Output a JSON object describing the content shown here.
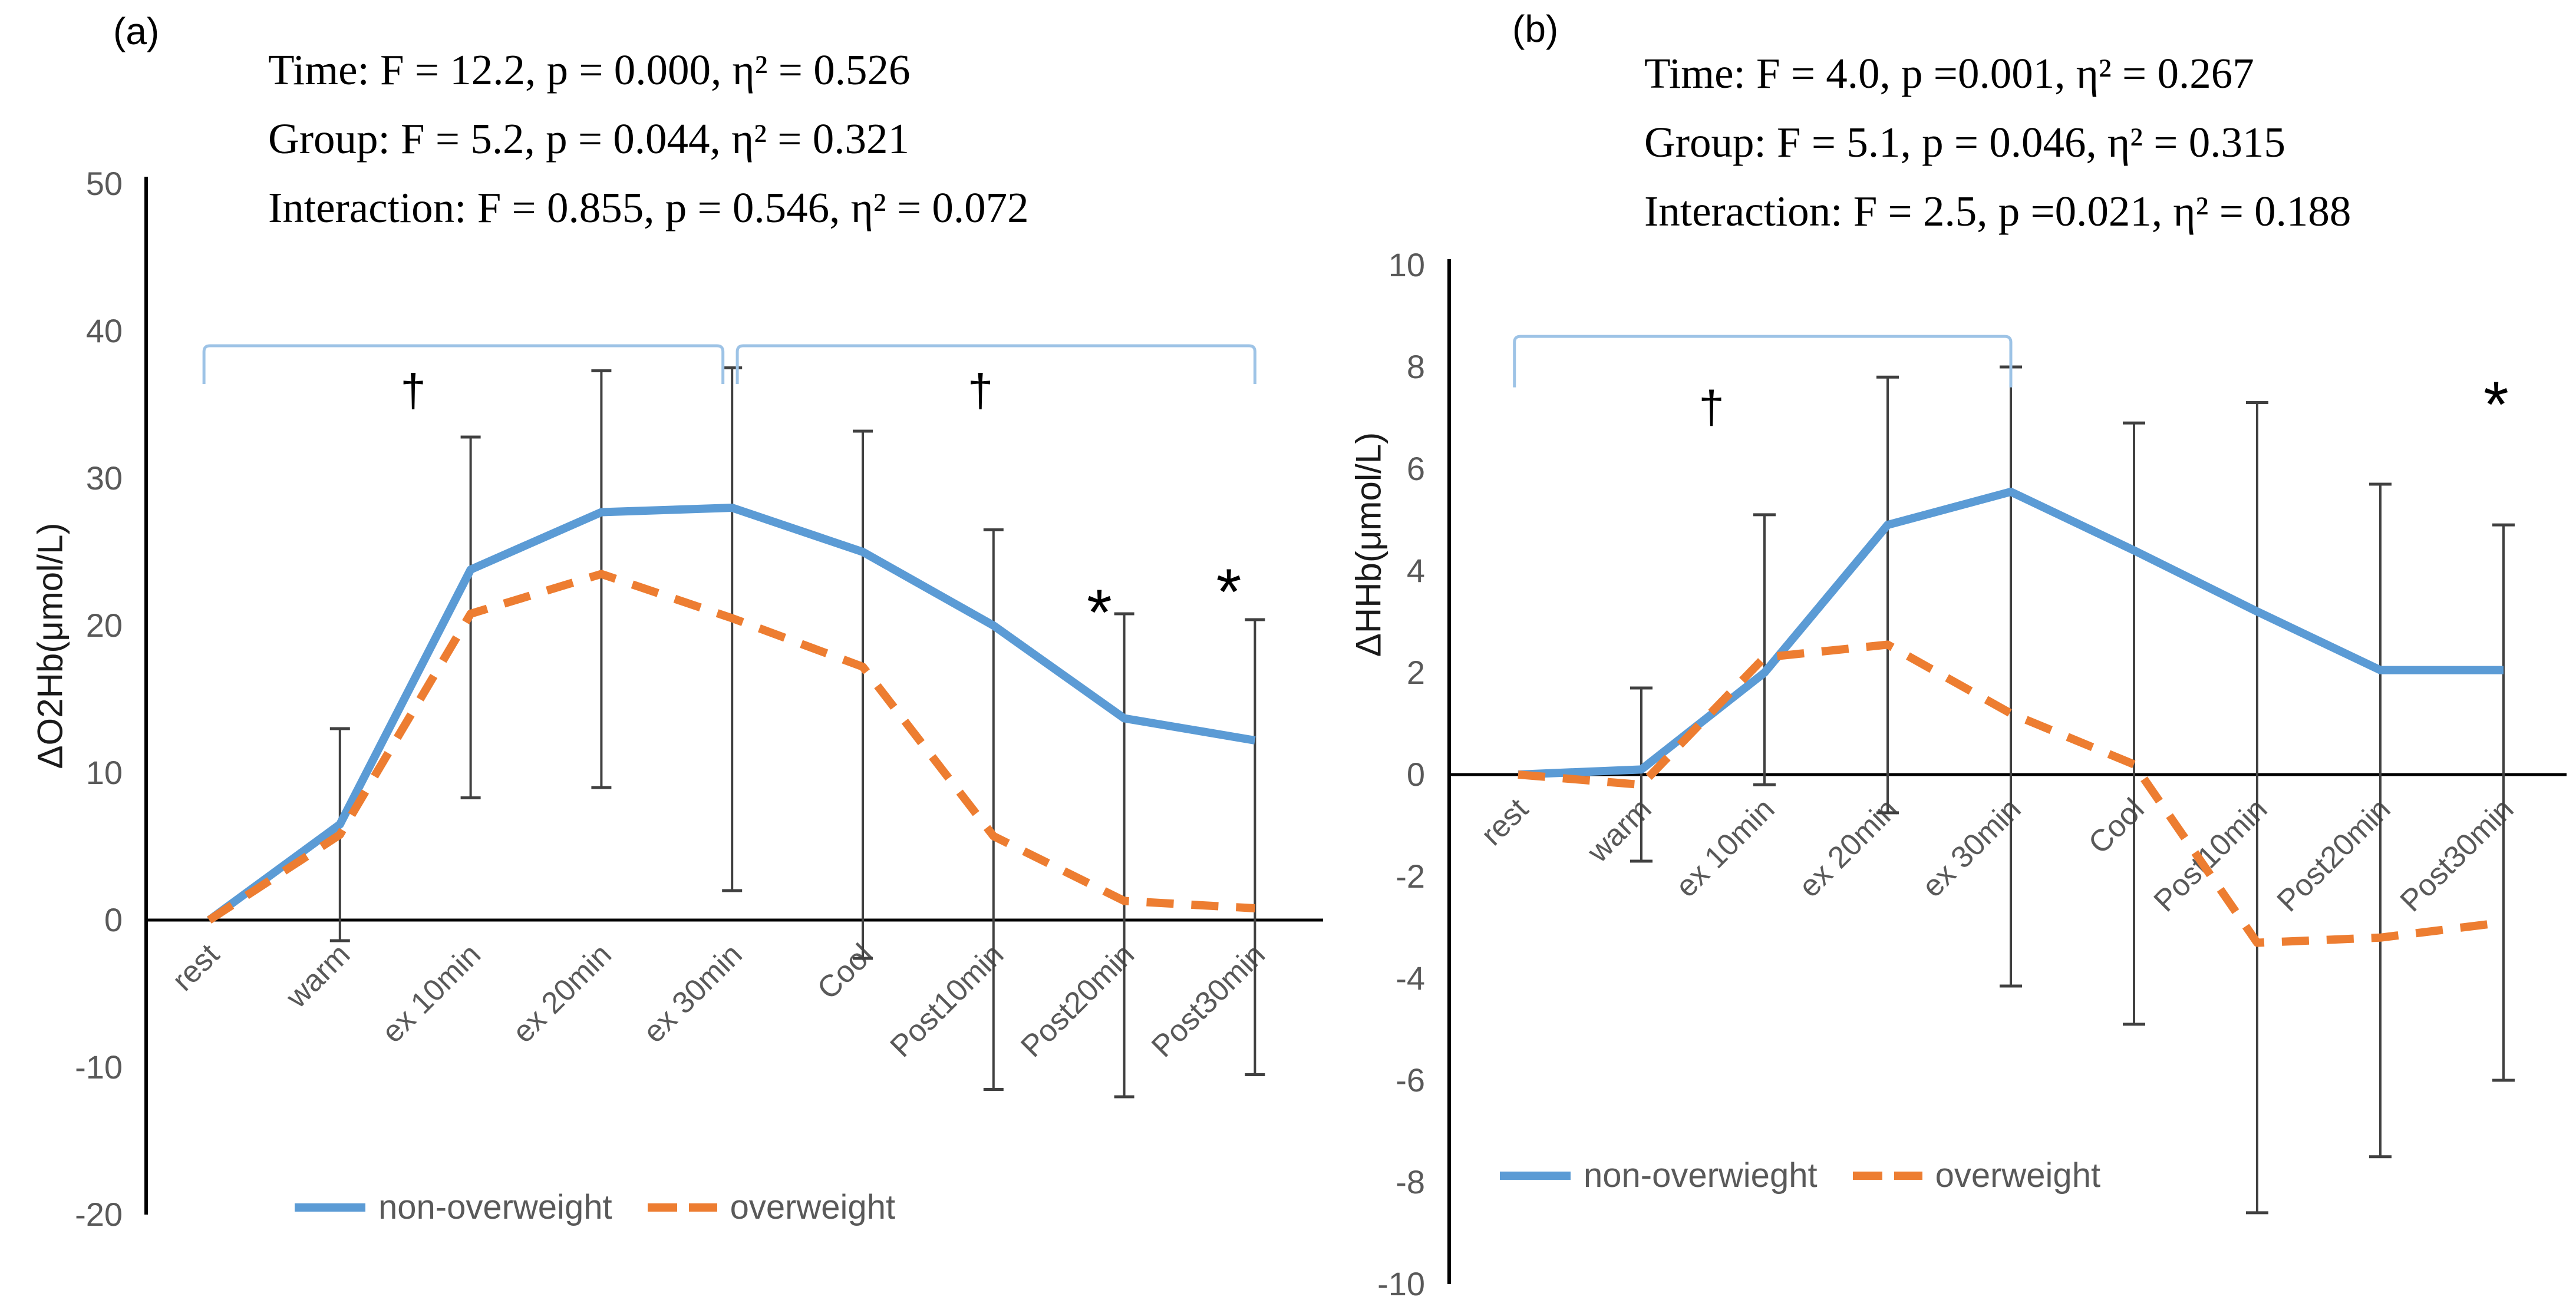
{
  "palette": {
    "blue": "#5B9BD5",
    "orange": "#ED7D31",
    "bracket_blue": "#9DC3E6",
    "error_bar": "#404040",
    "axis": "#000000",
    "text_gray": "#595959"
  },
  "chart_data": [
    {
      "type": "line",
      "panel_label": "(a)",
      "stats": [
        "Time: F = 12.2, p = 0.000, η² = 0.526",
        "Group: F = 5.2, p = 0.044, η² = 0.321",
        "Interaction:  F = 0.855, p = 0.546, η² = 0.072"
      ],
      "ylabel": "ΔO2Hb(μmol/L)",
      "xlabel": "",
      "ylim": [
        -20,
        50
      ],
      "yticks": [
        50,
        40,
        30,
        20,
        10,
        0,
        -10,
        -20
      ],
      "grid": false,
      "legend_position": "bottom",
      "categories": [
        "rest",
        "warm",
        "ex 10min",
        "ex 20min",
        "ex 30min",
        "Cool",
        "Post10min",
        "Post20min",
        "Post30min"
      ],
      "series": [
        {
          "name": "non-overweight",
          "style": "solid",
          "color": "#5B9BD5",
          "values": [
            0,
            6.5,
            23.8,
            27.7,
            28.0,
            25.0,
            20.0,
            13.7,
            12.2
          ]
        },
        {
          "name": "overweight",
          "style": "dashed",
          "color": "#ED7D31",
          "values": [
            0,
            5.8,
            20.8,
            23.5,
            20.5,
            17.2,
            5.7,
            1.3,
            0.8
          ]
        }
      ],
      "error_bars": {
        "upper": [
          null,
          13.0,
          32.8,
          37.3,
          37.5,
          33.2,
          26.5,
          20.8,
          20.4
        ],
        "lower": [
          null,
          -1.4,
          8.3,
          9.0,
          2.0,
          -2.6,
          -11.5,
          -12.0,
          -10.5
        ]
      },
      "annotations": {
        "brackets": [
          {
            "from_index": -0.04,
            "to_index": 3.93,
            "y": 39.0,
            "drop": 2.6
          },
          {
            "from_index": 4.04,
            "to_index": 8.0,
            "y": 39.0,
            "drop": 2.6
          }
        ],
        "daggers": [
          {
            "x_index": 1.56,
            "y": 34.9,
            "symbol": "†"
          },
          {
            "x_index": 5.9,
            "y": 34.9,
            "symbol": "†"
          }
        ],
        "asterisks": [
          {
            "x_index": 6.81,
            "y": 21.7,
            "symbol": "*"
          },
          {
            "x_index": 7.8,
            "y": 23.1,
            "symbol": "*"
          }
        ]
      }
    },
    {
      "type": "line",
      "panel_label": "(b)",
      "stats": [
        "Time: F = 4.0, p =0.001, η² = 0.267",
        "Group: F = 5.1, p = 0.046, η² = 0.315",
        "Interaction:  F = 2.5, p =0.021, η² = 0.188"
      ],
      "ylabel": "ΔHHb(μmol/L)",
      "xlabel": "",
      "ylim": [
        -10,
        10
      ],
      "yticks": [
        10,
        8,
        6,
        4,
        2,
        0,
        -2,
        -4,
        -6,
        -8,
        -10
      ],
      "grid": false,
      "legend_position": "bottom",
      "categories": [
        "rest",
        "warm",
        "ex 10min",
        "ex 20min",
        "ex 30min",
        "Cool",
        "Post10min",
        "Post20min",
        "Post30min"
      ],
      "series": [
        {
          "name": "non-overwieght",
          "style": "solid",
          "color": "#5B9BD5",
          "values": [
            0,
            0.1,
            2.0,
            4.9,
            5.55,
            4.4,
            3.2,
            2.05,
            2.05
          ]
        },
        {
          "name": "overweight",
          "style": "dashed",
          "color": "#ED7D31",
          "values": [
            0,
            -0.2,
            2.3,
            2.55,
            1.2,
            0.2,
            -3.3,
            -3.2,
            -2.9
          ]
        }
      ],
      "error_bars": {
        "upper": [
          null,
          1.7,
          5.1,
          7.8,
          8.0,
          6.9,
          7.3,
          5.7,
          4.9
        ],
        "lower": [
          null,
          -1.7,
          -0.2,
          -0.75,
          -4.15,
          -4.9,
          -8.6,
          -7.5,
          -6.0
        ]
      },
      "annotations": {
        "brackets": [
          {
            "from_index": -0.03,
            "to_index": 4.0,
            "y": 8.6,
            "drop": 1.0
          }
        ],
        "daggers": [
          {
            "x_index": 1.57,
            "y": 6.9,
            "symbol": "†"
          }
        ],
        "asterisks": [
          {
            "x_index": 7.94,
            "y": 7.5,
            "symbol": "*"
          }
        ]
      }
    }
  ]
}
